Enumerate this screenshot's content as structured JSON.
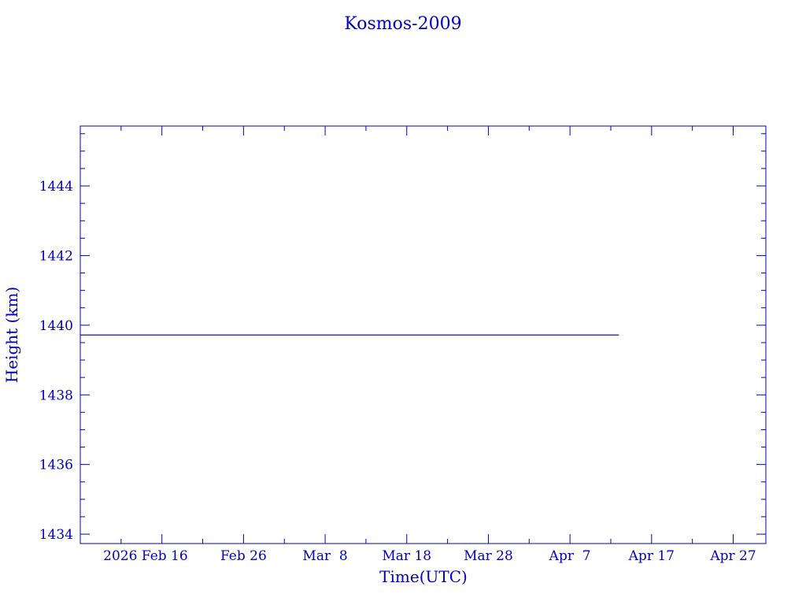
{
  "chart_data": {
    "type": "line",
    "title": "Kosmos-2009",
    "xlabel": "Time(UTC)",
    "ylabel": "Height (km)",
    "xlim": [
      "2026-02-06",
      "2026-05-01"
    ],
    "ylim": [
      1433.73,
      1445.72
    ],
    "x_ticks": [
      {
        "date": "2026-02-16",
        "label": "2026 Feb 16"
      },
      {
        "date": "2026-02-26",
        "label": "Feb 26"
      },
      {
        "date": "2026-03-08",
        "label": "Mar  8"
      },
      {
        "date": "2026-03-18",
        "label": "Mar 18"
      },
      {
        "date": "2026-03-28",
        "label": "Mar 28"
      },
      {
        "date": "2026-04-07",
        "label": "Apr  7"
      },
      {
        "date": "2026-04-17",
        "label": "Apr 17"
      },
      {
        "date": "2026-04-27",
        "label": "Apr 27"
      }
    ],
    "y_ticks": [
      1434,
      1436,
      1438,
      1440,
      1442,
      1444
    ],
    "grid": false,
    "series": [
      {
        "x": [
          "2026-02-06",
          "2026-04-13"
        ],
        "y": [
          1439.72,
          1439.72
        ],
        "color": "#1a1a70"
      }
    ],
    "axis_color": "#0000c0"
  }
}
